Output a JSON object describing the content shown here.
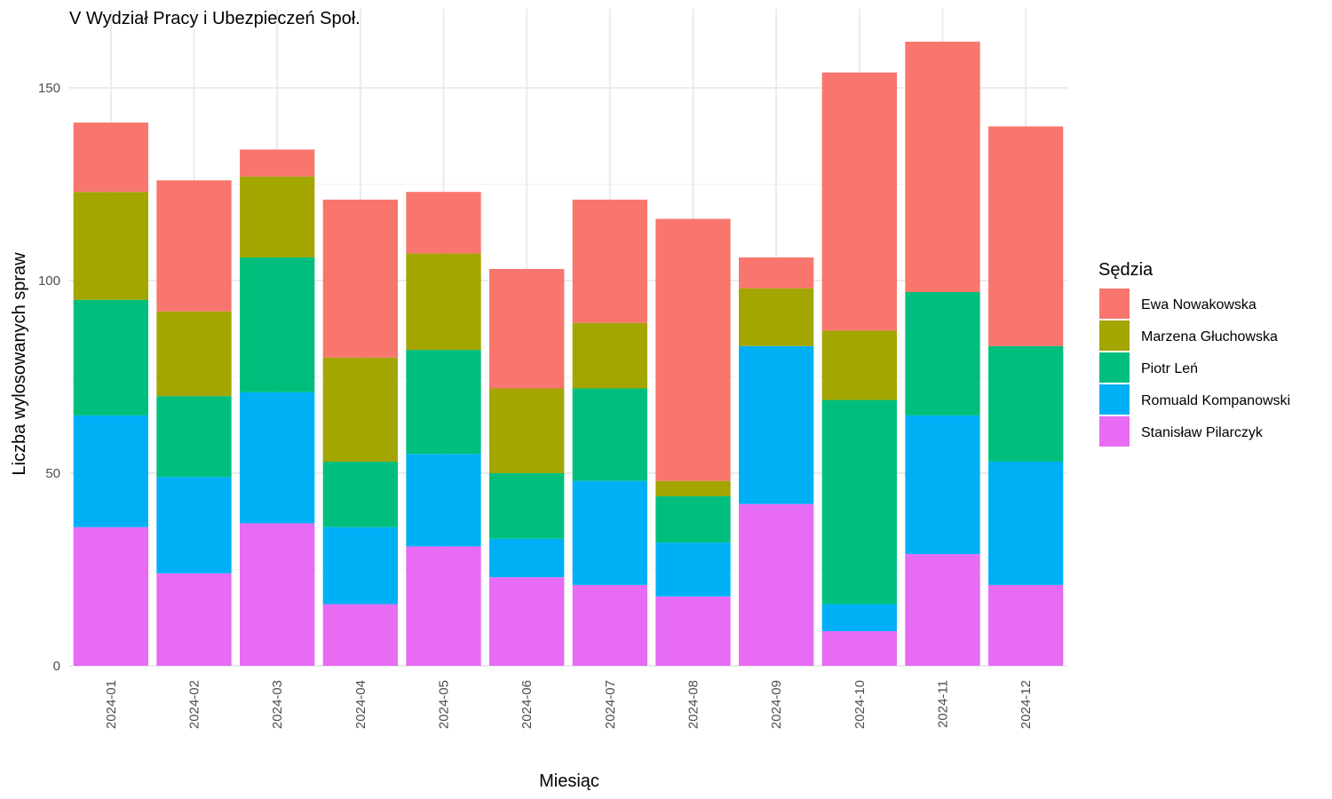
{
  "chart_data": {
    "type": "bar",
    "stacked": true,
    "title": "V Wydział Pracy i Ubezpieczeń Społ.",
    "xlabel": "Miesiąc",
    "ylabel": "Liczba wylosowanych spraw",
    "ylim": [
      0,
      165
    ],
    "yticks": [
      0,
      50,
      100,
      150
    ],
    "grid": true,
    "legend_position": "right",
    "legend_title": "Sędzia",
    "categories": [
      "2024-01",
      "2024-02",
      "2024-03",
      "2024-04",
      "2024-05",
      "2024-06",
      "2024-07",
      "2024-08",
      "2024-09",
      "2024-10",
      "2024-11",
      "2024-12"
    ],
    "series": [
      {
        "name": "Ewa Nowakowska",
        "color": "#F8766D",
        "values": [
          18,
          34,
          7,
          41,
          16,
          31,
          32,
          68,
          8,
          67,
          65,
          57
        ]
      },
      {
        "name": "Marzena Głuchowska",
        "color": "#A3A500",
        "values": [
          28,
          22,
          21,
          27,
          25,
          22,
          17,
          4,
          15,
          18,
          0,
          0
        ]
      },
      {
        "name": "Piotr Leń",
        "color": "#00BF7D",
        "values": [
          30,
          21,
          35,
          17,
          27,
          17,
          24,
          12,
          0,
          53,
          32,
          30
        ]
      },
      {
        "name": "Romuald Kompanowski",
        "color": "#00B0F6",
        "values": [
          29,
          25,
          34,
          20,
          24,
          10,
          27,
          14,
          41,
          7,
          36,
          32
        ]
      },
      {
        "name": "Stanisław Pilarczyk",
        "color": "#E76BF3",
        "values": [
          36,
          24,
          37,
          16,
          31,
          23,
          21,
          18,
          42,
          9,
          29,
          21
        ]
      }
    ]
  }
}
